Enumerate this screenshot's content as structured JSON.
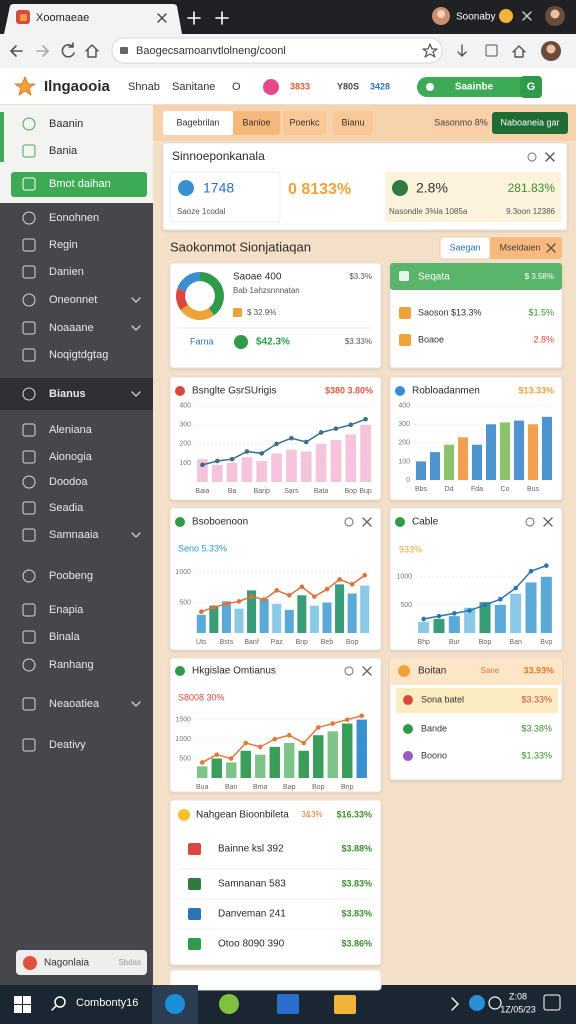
{
  "browser": {
    "tab_title": "Xoomaeae",
    "profile": "Soonaby",
    "url": "Baogecsamoanvtlolneng/coonl"
  },
  "app": {
    "logo": "Ilngaooia",
    "nav": [
      "Shnab",
      "Sanitane",
      "O"
    ],
    "badges": [
      "3833",
      "Y80S",
      "3428"
    ],
    "pill": "Saainbe",
    "button": "G"
  },
  "sidebar": {
    "items": [
      "Baanin",
      "Bania",
      "Bmot daihan",
      "Eonohnen",
      "Regin",
      "Danien",
      "Oneonnet",
      "Noaaane",
      "Noqigtdgtag",
      "Bianus",
      "Aleniana",
      "Aionogia",
      "Doodoa",
      "Seadia",
      "Samnaaia",
      "Poobeng",
      "Enapia",
      "Binala",
      "Ranhang",
      "Neaoatiea",
      "Deativy"
    ],
    "footer_title": "Nagonlaia",
    "footer_note": "Sbdas"
  },
  "tabs": {
    "items": [
      "Bagebrilan",
      "Banioe",
      "Poenkc",
      "Bianu"
    ],
    "filter": "Sasonmo 8%",
    "button": "Naboaneia gar"
  },
  "summary": {
    "title": "Sinnoeponkanala",
    "stats": [
      {
        "value": "1748",
        "label": "Saoze 1codal"
      },
      {
        "value": "0 8133%"
      },
      {
        "value": "2.8%",
        "label": "Nasondle 3%la 1085a"
      },
      {
        "value": "281.83%",
        "label": "9.3oon 12386"
      }
    ]
  },
  "section": {
    "title": "Saokonmot Sionjatiaqan",
    "buttons": [
      "Saegan",
      "Mseidaien"
    ]
  },
  "overview_card": {
    "title": "Saoae 400",
    "value": "$3.3%",
    "subtitle": "Bab 1ahzsnnnatan",
    "row": "$ 32.9%",
    "footer_label": "Farna",
    "footer_value": "$42.3%",
    "footer_right": "$3.33%"
  },
  "status_card": {
    "title": "Seqata",
    "value": "$ 3.58%",
    "rows": [
      {
        "label": "Saoson $13.3%",
        "value": "$1.5%"
      },
      {
        "label": "Boaoe",
        "value": "2.8%"
      }
    ]
  },
  "detail_card": {
    "title": "Boitan",
    "tag": "Sane",
    "value": "33.93%",
    "rows": [
      {
        "label": "Sona batel",
        "value": "$3.33%"
      },
      {
        "label": "Bande",
        "value": "$3.38%"
      },
      {
        "label": "Boono",
        "value": "$1.33%"
      }
    ]
  },
  "list_card": {
    "title": "Nahgean Bioonbileta",
    "tag": "3&3%",
    "value": "$16.33%",
    "rows": [
      {
        "label": "Bainne ksl 392",
        "value": "$3.88%"
      },
      {
        "label": "Samnanan 583",
        "value": "$3.83%"
      },
      {
        "label": "Danveman 241",
        "value": "$3.83%"
      },
      {
        "label": "Otoo 8090 390",
        "value": "$3.86%"
      }
    ]
  },
  "taskbar": {
    "search": "Combonty16",
    "time": "Z:08",
    "date": "1Z/05/23"
  },
  "charts": [
    {
      "type": "pie",
      "values": [
        40,
        25,
        15,
        20
      ],
      "colors": [
        "#2f9a4a",
        "#f0a23a",
        "#d9473f",
        "#3a8fd0"
      ]
    },
    {
      "type": "combo",
      "title": "Bsnglte GsrSUrigis",
      "value": "$380 3.80%",
      "ylim": [
        0,
        420
      ],
      "yticks": [
        100,
        200,
        300,
        400
      ],
      "categories": [
        "Baia",
        null,
        "Ba",
        null,
        "Barip",
        null,
        "Sars",
        null,
        "Bata",
        null,
        "Bop",
        "Bup"
      ],
      "series": [
        {
          "kind": "bar",
          "color": "#f6c3dc",
          "values": [
            120,
            90,
            100,
            130,
            110,
            150,
            170,
            160,
            200,
            220,
            250,
            300
          ]
        },
        {
          "kind": "line",
          "color": "#3b6e8f",
          "values": [
            90,
            110,
            120,
            160,
            150,
            200,
            230,
            210,
            260,
            280,
            300,
            330
          ]
        }
      ]
    },
    {
      "type": "combo",
      "title": "Robloadanmen",
      "value": "$13.33%",
      "ylim": [
        0,
        420
      ],
      "yticks": [
        0,
        100,
        200,
        300,
        400
      ],
      "categories": [
        "Bbs",
        null,
        "Dd",
        null,
        "Fda",
        null,
        "Co",
        null,
        "Bus",
        null
      ],
      "series": [
        {
          "kind": "bar",
          "colors": [
            "#4f94cf",
            "#4f94cf",
            "#8cc26b",
            "#f0a050",
            "#4f94cf",
            "#4f94cf",
            "#8cc26b",
            "#4f94cf",
            "#f0a050",
            "#4f94cf"
          ],
          "values": [
            100,
            150,
            190,
            230,
            190,
            300,
            310,
            320,
            300,
            340
          ]
        }
      ]
    },
    {
      "type": "combo",
      "title": "Bsoboenoon",
      "value": "Seno 5.33%",
      "ylim": [
        0,
        1200
      ],
      "yticks": [
        500,
        1000
      ],
      "categories": [
        "Uts",
        null,
        "Bsts",
        null,
        "Banf",
        null,
        "Paz",
        null,
        "Bnp",
        null,
        "Beb",
        null,
        "Bop",
        null
      ],
      "series": [
        {
          "kind": "bar",
          "colors": [
            "#5aa9d6",
            "#3a9d7a",
            "#5aa9d6",
            "#8cc9e6",
            "#3a9d7a",
            "#5aa9d6",
            "#8cc9e6",
            "#5aa9d6",
            "#3a9d7a",
            "#8cc9e6",
            "#5aa9d6",
            "#3a9d7a",
            "#5aa9d6",
            "#8cc9e6"
          ],
          "values": [
            300,
            450,
            520,
            400,
            700,
            560,
            480,
            380,
            620,
            450,
            500,
            800,
            650,
            780
          ]
        },
        {
          "kind": "line",
          "color": "#e0703a",
          "values": [
            350,
            420,
            480,
            520,
            600,
            550,
            700,
            620,
            760,
            600,
            720,
            880,
            800,
            950
          ]
        }
      ]
    },
    {
      "type": "combo",
      "title": "Cable",
      "value": "933%",
      "ylim": [
        0,
        1300
      ],
      "yticks": [
        500,
        1000
      ],
      "categories": [
        "Bhp",
        null,
        "Bur",
        null,
        "Bop",
        null,
        "Ban",
        null,
        "Bvp"
      ],
      "series": [
        {
          "kind": "bar",
          "colors": [
            "#8cc9e6",
            "#3a9d7a",
            "#5aa9d6",
            "#8cc9e6",
            "#3a9d7a",
            "#5aa9d6",
            "#8cc9e6",
            "#5aa9d6",
            "#5aa9d6"
          ],
          "values": [
            200,
            250,
            300,
            450,
            550,
            500,
            700,
            900,
            1000
          ]
        },
        {
          "kind": "line",
          "color": "#2b74b8",
          "values": [
            250,
            300,
            350,
            400,
            500,
            600,
            800,
            1100,
            1200
          ]
        }
      ]
    },
    {
      "type": "combo",
      "title": "Hkgislae Omtianus",
      "value": "S8008 30%",
      "ylim": [
        0,
        1800
      ],
      "yticks": [
        500,
        1000,
        1500
      ],
      "categories": [
        "Bua",
        null,
        "Ban",
        null,
        "Bma",
        null,
        "Bap",
        null,
        "Bop",
        null,
        "Bnp",
        null
      ],
      "series": [
        {
          "kind": "bar",
          "colors": [
            "#7cc48a",
            "#3a9d5a",
            "#7cc48a",
            "#3a9d5a",
            "#7cc48a",
            "#3a9d5a",
            "#7cc48a",
            "#3a9d5a",
            "#3a9d5a",
            "#7cc48a",
            "#3a9d5a",
            "#3a8fd0"
          ],
          "values": [
            300,
            500,
            400,
            700,
            600,
            800,
            900,
            700,
            1100,
            1200,
            1400,
            1500
          ]
        },
        {
          "kind": "line",
          "color": "#e07a3a",
          "values": [
            400,
            600,
            500,
            900,
            800,
            1000,
            1100,
            900,
            1300,
            1400,
            1500,
            1600
          ]
        }
      ]
    }
  ]
}
